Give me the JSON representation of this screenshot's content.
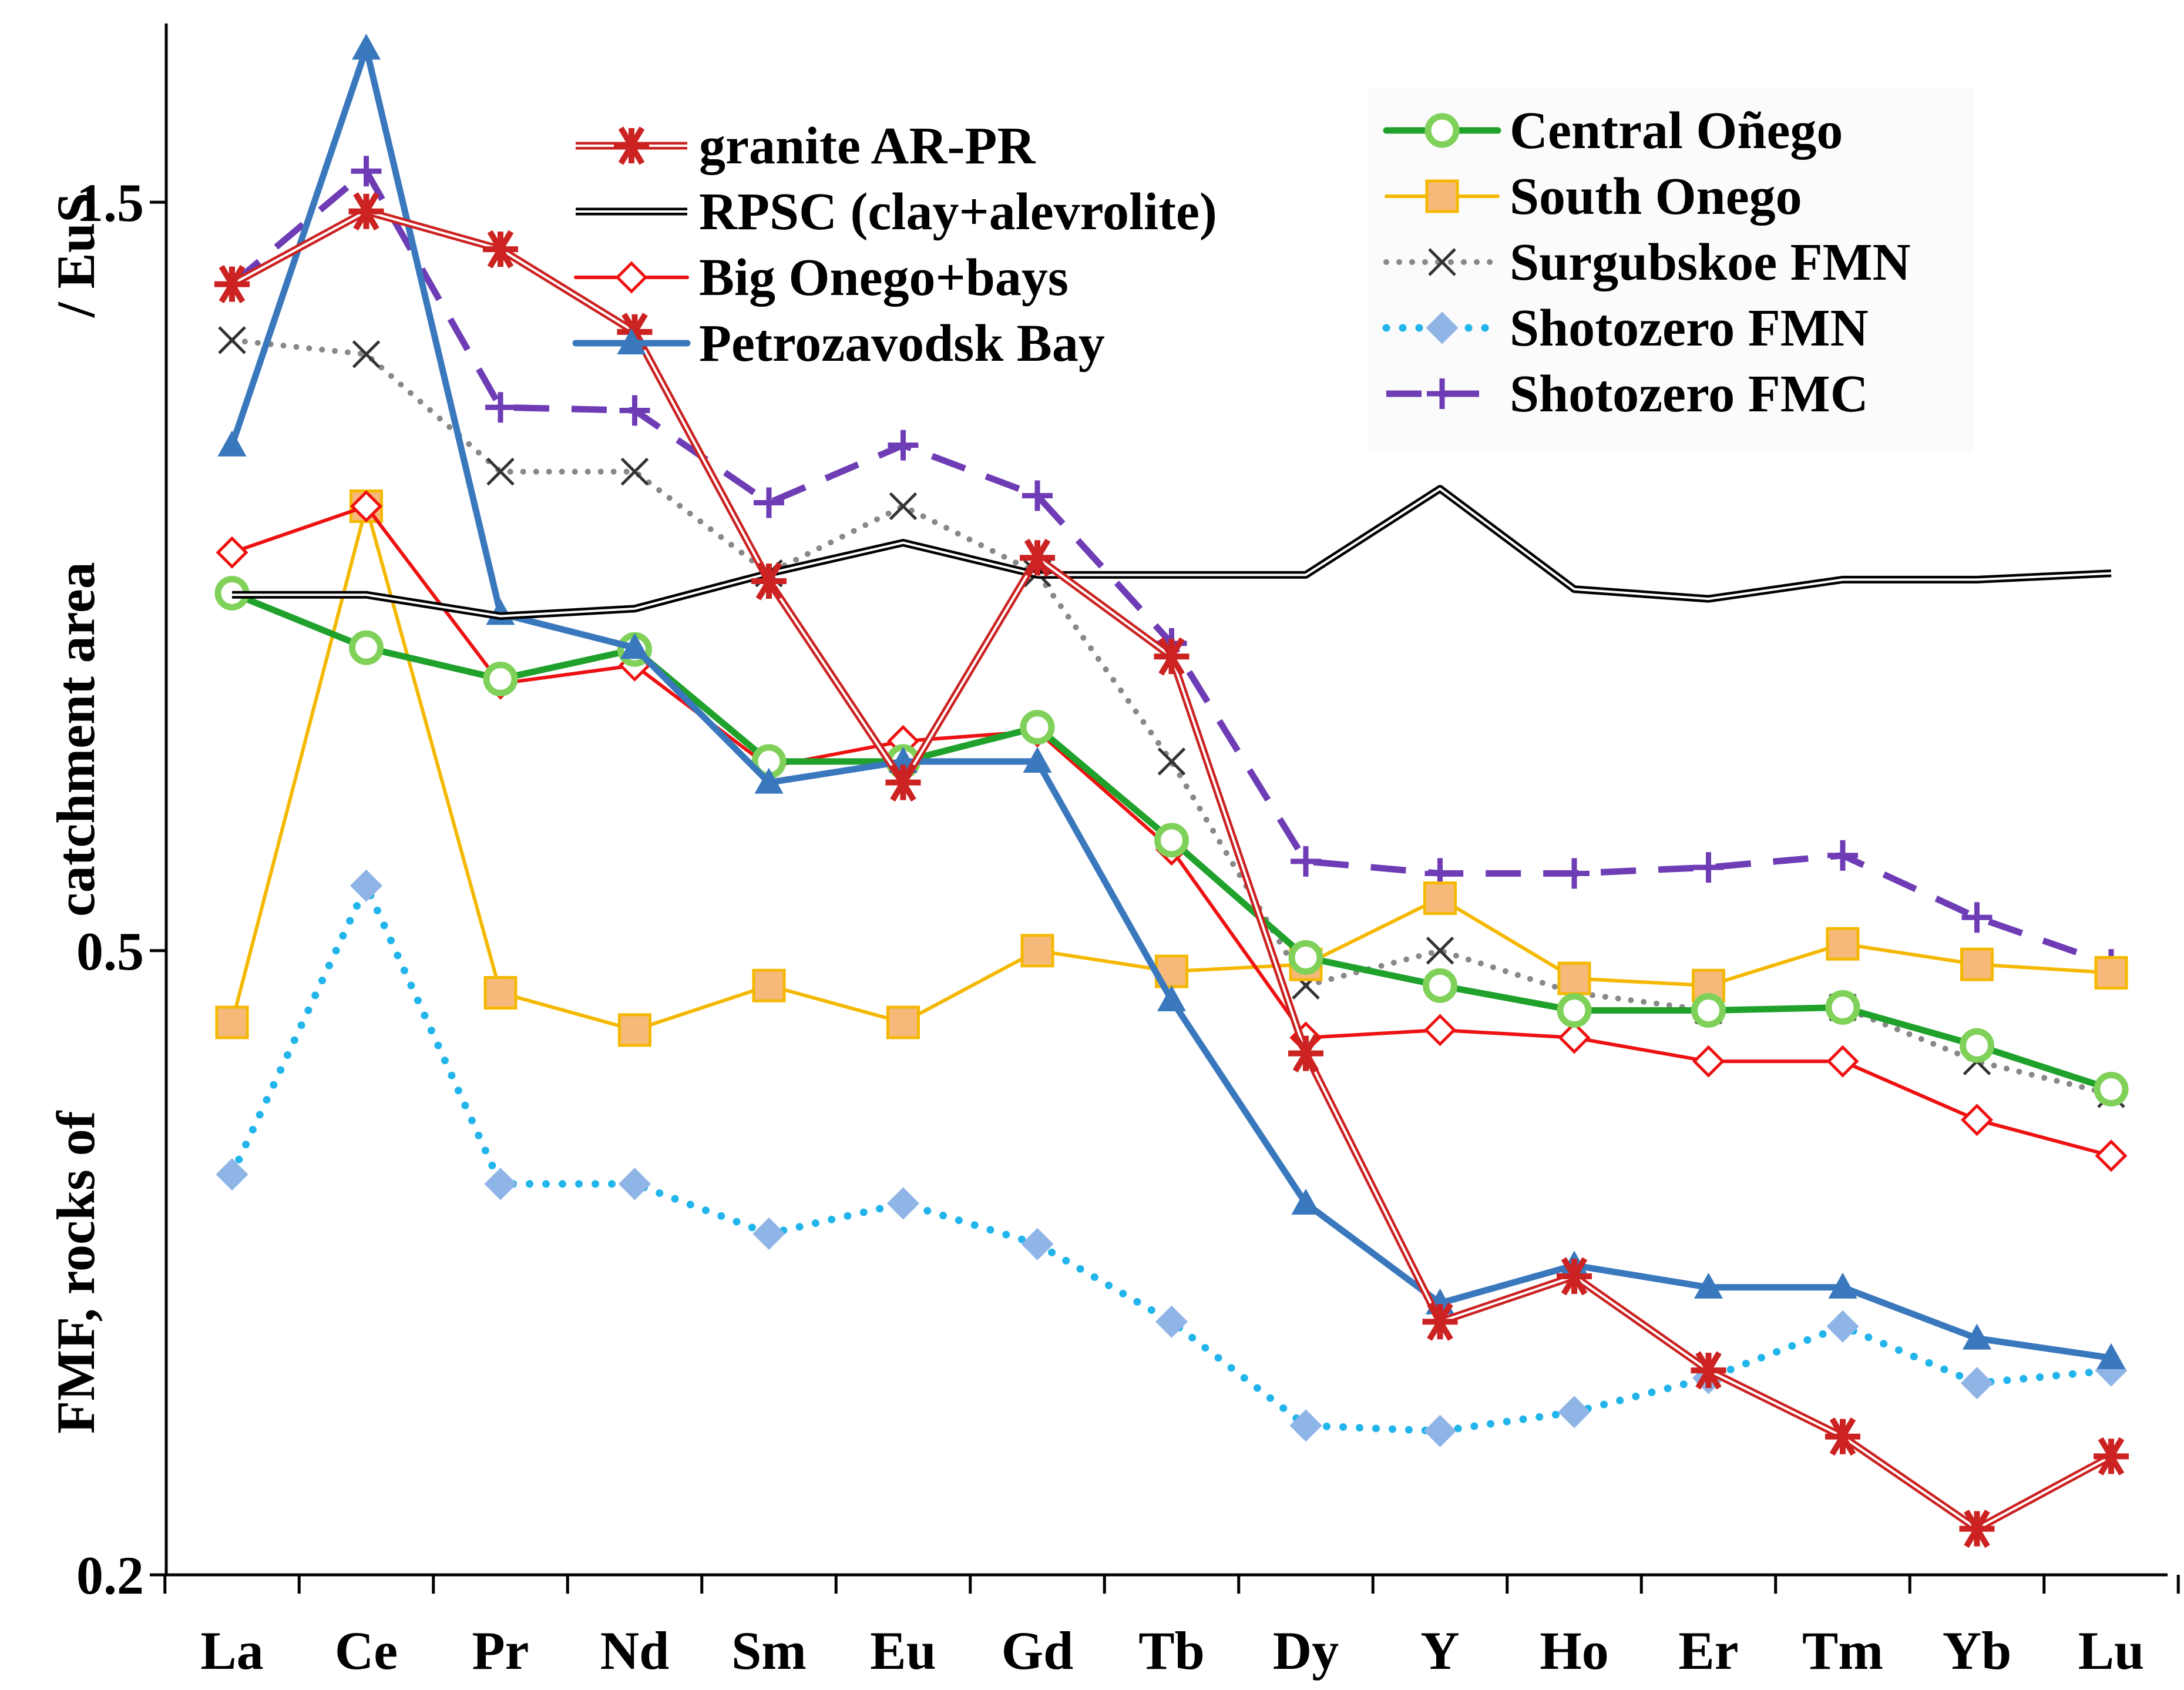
{
  "chart_data": {
    "type": "line",
    "title": "",
    "xlabel": "",
    "ylabel_parts": [
      "FMF, rocks of",
      "catchment area",
      "/ EuS"
    ],
    "y_scale": "log",
    "ylim": [
      0.2,
      1.95
    ],
    "yticks": [
      {
        "value": 0.2,
        "label": "0.2"
      },
      {
        "value": 0.5,
        "label": "0.5"
      },
      {
        "value": 1.5,
        "label": "1.5"
      }
    ],
    "categories": [
      "La",
      "Ce",
      "Pr",
      "Nd",
      "Sm",
      "Eu",
      "Gd",
      "Tb",
      "Dy",
      "Y",
      "Ho",
      "Er",
      "Tm",
      "Yb",
      "Lu"
    ],
    "series": [
      {
        "name": "granite AR-PR",
        "color": "#cc2222",
        "style": "double",
        "marker": "asterisk",
        "values": [
          1.33,
          1.48,
          1.4,
          1.24,
          0.86,
          0.64,
          0.89,
          0.77,
          0.43,
          0.29,
          0.31,
          0.27,
          0.245,
          0.214,
          0.238
        ]
      },
      {
        "name": "RPSC (clay+alevrolite)",
        "color": "#000000",
        "style": "double",
        "marker": "none",
        "values": [
          0.843,
          0.843,
          0.817,
          0.826,
          0.87,
          0.91,
          0.868,
          0.868,
          0.868,
          0.985,
          0.85,
          0.838,
          0.862,
          0.862,
          0.87
        ]
      },
      {
        "name": "Big Onego+bays",
        "color": "#ee1111",
        "style": "solid",
        "marker": "diamond-open",
        "values": [
          0.897,
          0.96,
          0.74,
          0.76,
          0.655,
          0.68,
          0.69,
          0.58,
          0.44,
          0.445,
          0.44,
          0.425,
          0.425,
          0.39,
          0.37
        ]
      },
      {
        "name": "Petrozavodsk Bay",
        "color": "#3a78bd",
        "style": "solid-thick",
        "marker": "triangle",
        "values": [
          1.05,
          1.88,
          0.82,
          0.78,
          0.64,
          0.66,
          0.66,
          0.465,
          0.345,
          0.298,
          0.315,
          0.305,
          0.305,
          0.283,
          0.275
        ]
      },
      {
        "name": "Central Oñego",
        "color": "#1fa12b",
        "style": "solid-thick",
        "marker": "circle-open",
        "values": [
          0.845,
          0.78,
          0.745,
          0.778,
          0.66,
          0.66,
          0.694,
          0.588,
          0.495,
          0.475,
          0.458,
          0.458,
          0.46,
          0.435,
          0.408
        ]
      },
      {
        "name": "South Onego",
        "color": "#f5b800",
        "style": "solid",
        "marker": "square",
        "values": [
          0.45,
          0.96,
          0.47,
          0.445,
          0.475,
          0.45,
          0.5,
          0.485,
          0.49,
          0.54,
          0.48,
          0.475,
          0.505,
          0.49,
          0.484
        ]
      },
      {
        "name": "Surgubskoe FMN",
        "color": "#888888",
        "style": "dotted",
        "marker": "x",
        "values": [
          1.225,
          1.2,
          1.01,
          1.01,
          0.87,
          0.96,
          0.87,
          0.66,
          0.475,
          0.5,
          0.47,
          0.458,
          0.46,
          0.425,
          0.405
        ]
      },
      {
        "name": "Shotozero FMN",
        "color": "#22b5ec",
        "style": "dotted-thick",
        "marker": "diamond",
        "values": [
          0.36,
          0.55,
          0.355,
          0.355,
          0.33,
          0.345,
          0.325,
          0.29,
          0.249,
          0.247,
          0.254,
          0.267,
          0.288,
          0.265,
          0.27
        ]
      },
      {
        "name": "Shotozero FMC",
        "color": "#6e3cb5",
        "style": "dashed",
        "marker": "plus",
        "values": [
          1.33,
          1.57,
          1.11,
          1.105,
          0.965,
          1.05,
          0.975,
          0.785,
          0.57,
          0.56,
          0.56,
          0.565,
          0.575,
          0.525,
          0.49
        ]
      }
    ],
    "legend_position": "top"
  },
  "legend_label_display": {
    "Shotozero FMN": "Shotozero FMN",
    "Shotozero FMC": "Shotozero   FMC"
  }
}
